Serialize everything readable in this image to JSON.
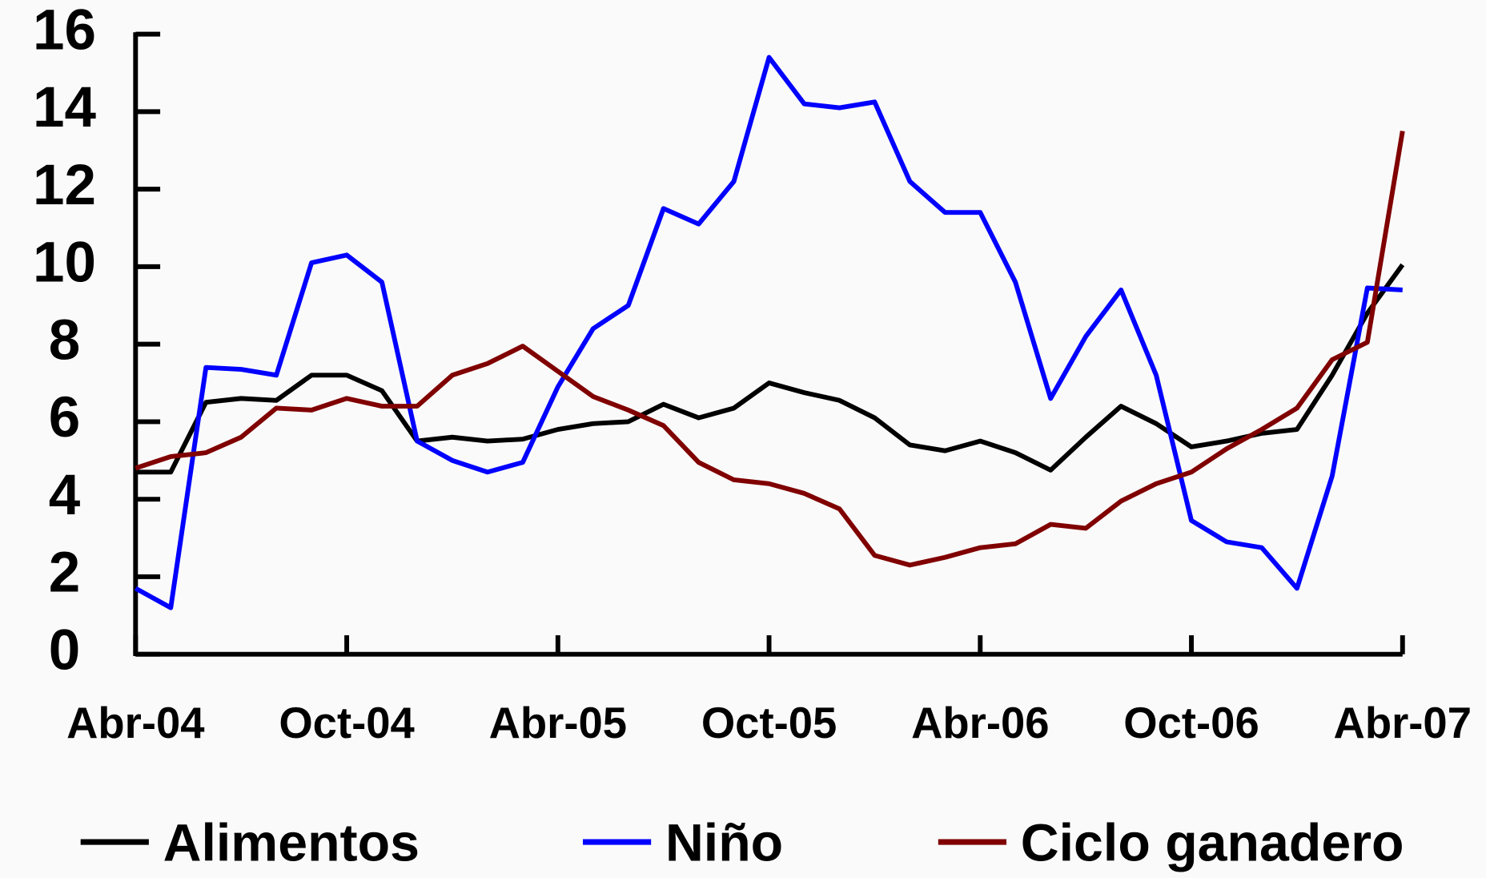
{
  "chart_data": {
    "type": "line",
    "categories": [
      "Abr-04",
      null,
      null,
      null,
      null,
      null,
      "Oct-04",
      null,
      null,
      null,
      null,
      null,
      "Abr-05",
      null,
      null,
      null,
      null,
      null,
      "Oct-05",
      null,
      null,
      null,
      null,
      null,
      "Abr-06",
      null,
      null,
      null,
      null,
      null,
      "Oct-06",
      null,
      null,
      null,
      null,
      null,
      "Abr-07"
    ],
    "series": [
      {
        "name": "Alimentos",
        "color": "#000000",
        "values": [
          4.7,
          4.7,
          6.5,
          6.6,
          6.55,
          7.2,
          7.2,
          6.8,
          5.5,
          5.6,
          5.5,
          5.55,
          5.8,
          5.95,
          6.0,
          6.45,
          6.1,
          6.35,
          7.0,
          6.75,
          6.55,
          6.1,
          5.4,
          5.25,
          5.5,
          5.2,
          4.75,
          5.6,
          6.4,
          5.95,
          5.35,
          5.5,
          5.7,
          5.8,
          7.2,
          8.8,
          10.05
        ]
      },
      {
        "name": "Niño",
        "color": "#0000ff",
        "values": [
          1.7,
          1.2,
          7.4,
          7.35,
          7.2,
          10.1,
          10.3,
          9.6,
          5.5,
          5.0,
          4.7,
          4.95,
          6.9,
          8.4,
          9.0,
          11.5,
          11.1,
          12.2,
          15.4,
          14.2,
          14.1,
          14.25,
          12.2,
          11.4,
          11.4,
          9.6,
          6.6,
          8.2,
          9.4,
          7.2,
          3.45,
          2.9,
          2.75,
          1.7,
          4.6,
          9.45,
          9.4
        ]
      },
      {
        "name": "Ciclo ganadero",
        "color": "#800000",
        "values": [
          4.8,
          5.1,
          5.2,
          5.6,
          6.35,
          6.3,
          6.6,
          6.4,
          6.4,
          7.2,
          7.5,
          7.95,
          7.3,
          6.65,
          6.3,
          5.9,
          4.95,
          4.5,
          4.4,
          4.15,
          3.75,
          2.55,
          2.3,
          2.5,
          2.75,
          2.85,
          3.35,
          3.25,
          3.95,
          4.4,
          4.7,
          5.3,
          5.8,
          6.35,
          7.6,
          8.05,
          13.5
        ]
      }
    ],
    "ylim": [
      0,
      16
    ],
    "yticks": [
      0,
      2,
      4,
      6,
      8,
      10,
      12,
      14,
      16
    ]
  }
}
